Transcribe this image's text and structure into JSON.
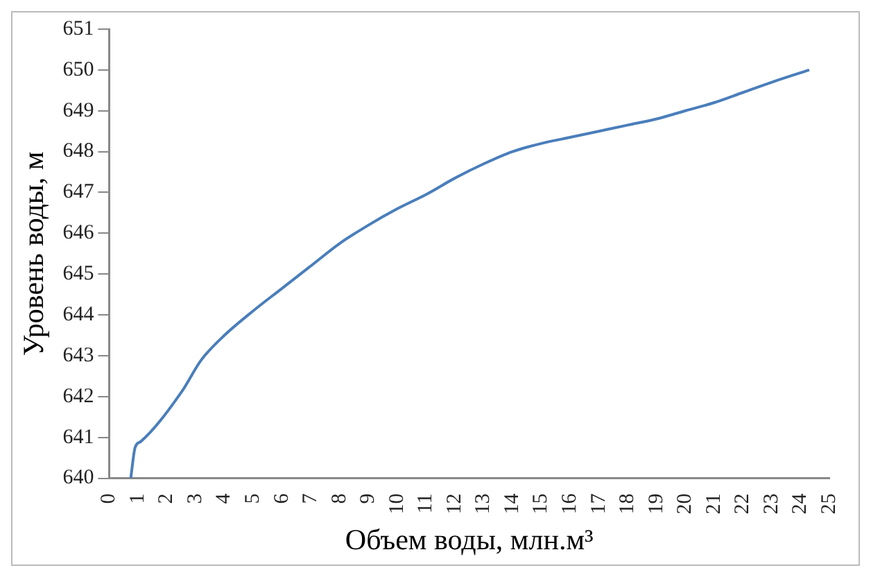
{
  "chart_data": {
    "type": "line",
    "xlabel": "Объем воды, млн.м³",
    "ylabel": "Уровень воды, м",
    "x": [
      0.75,
      0.9,
      1.1,
      2.5,
      3.2,
      4,
      5,
      6,
      7,
      8,
      9,
      10,
      11,
      12,
      13,
      14,
      15,
      16,
      17,
      18,
      19,
      20,
      21,
      22,
      23,
      24.3
    ],
    "series": [
      {
        "color": "#4a7ebb",
        "values": [
          640,
          640.75,
          640.9,
          642.1,
          642.9,
          643.5,
          644.1,
          644.65,
          645.2,
          645.75,
          646.2,
          646.6,
          646.95,
          647.35,
          647.7,
          648.0,
          648.2,
          648.35,
          648.5,
          648.65,
          648.8,
          649.0,
          649.2,
          649.45,
          649.7,
          650.0
        ]
      }
    ],
    "xlim": [
      0,
      25
    ],
    "xticks": [
      0,
      1,
      2,
      3,
      4,
      5,
      6,
      7,
      8,
      9,
      10,
      11,
      12,
      13,
      14,
      15,
      16,
      17,
      18,
      19,
      20,
      21,
      22,
      23,
      24,
      25
    ],
    "ylim": [
      640,
      651
    ],
    "yticks": [
      640,
      641,
      642,
      643,
      644,
      645,
      646,
      647,
      648,
      649,
      650,
      651
    ],
    "grid": false,
    "legend": false,
    "marker": "none",
    "line_style": "solid"
  }
}
